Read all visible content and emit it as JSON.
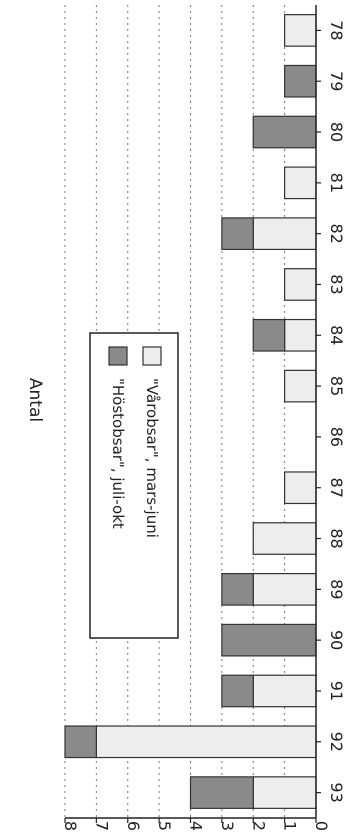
{
  "chart_data": {
    "type": "bar",
    "orientation": "horizontal-stacked",
    "categories": [
      "78",
      "79",
      "80",
      "81",
      "82",
      "83",
      "84",
      "85",
      "86",
      "87",
      "88",
      "89",
      "90",
      "91",
      "92",
      "93"
    ],
    "series": [
      {
        "name": "\"Vårobsar\", mars-juni",
        "values": [
          1,
          0,
          0,
          1,
          2,
          1,
          1,
          1,
          0,
          1,
          2,
          2,
          0,
          2,
          7,
          2
        ],
        "color": "#ededed"
      },
      {
        "name": "\"Höstobsar\", juli-okt",
        "values": [
          0,
          1,
          2,
          0,
          1,
          0,
          1,
          0,
          0,
          0,
          0,
          1,
          3,
          1,
          1,
          2
        ],
        "color": "#8a8a8a"
      }
    ],
    "ylabel": "Antal",
    "yticks": [
      "0",
      "1",
      "2",
      "3",
      "4",
      "5",
      "6",
      "7",
      "8"
    ],
    "ylim": [
      0,
      8
    ],
    "grid": true,
    "legend_position": "inside, upper middle"
  }
}
